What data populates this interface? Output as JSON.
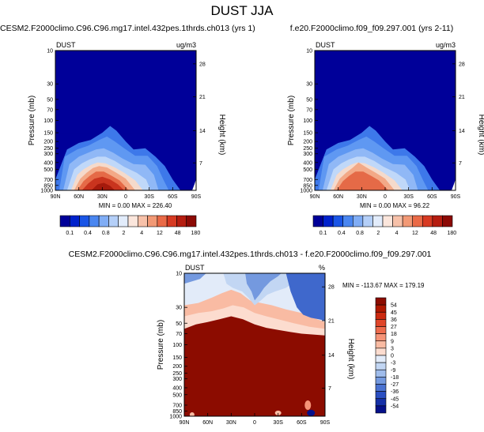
{
  "page_title": "DUST JJA",
  "chart_data": [
    {
      "type": "heatmap",
      "title": "CESM2.F2000climo.C96.C96.mg17.intel.432pes.1thrds.ch013 (yrs 1)",
      "variable": "DUST",
      "units": "ug/m3",
      "ylabel": "Pressure (mb)",
      "y2label": "Height (km)",
      "x_ticks": [
        "90N",
        "60N",
        "30N",
        "0",
        "30S",
        "60S",
        "90S"
      ],
      "y_ticks": [
        10,
        30,
        50,
        70,
        100,
        150,
        200,
        250,
        300,
        400,
        500,
        700,
        850,
        1000
      ],
      "y2_ticks": [
        28,
        21,
        14,
        7
      ],
      "ylim": [
        1000,
        10
      ],
      "scale": "log-pressure",
      "stats": {
        "min_label": "MIN =",
        "min": "0.00",
        "max_label": "MAX =",
        "max": "226.40"
      },
      "colorbar_levels": [
        "0.1",
        "0.4",
        "0.8",
        "2",
        "4",
        "12",
        "48",
        "180"
      ],
      "colorbar_colors": [
        "#000099",
        "#0022cc",
        "#1a55e6",
        "#4a86f0",
        "#80adf5",
        "#b4cff8",
        "#e2ecfb",
        "#fbe6dc",
        "#f7c1a9",
        "#f29975",
        "#ea6a47",
        "#d73a22",
        "#b51d10",
        "#8c0a05"
      ],
      "peak": "30N near surface"
    },
    {
      "type": "heatmap",
      "title": "f.e20.F2000climo.f09_f09.297.001 (yrs 2-11)",
      "variable": "DUST",
      "units": "ug/m3",
      "ylabel": "Pressure (mb)",
      "y2label": "Height (km)",
      "x_ticks": [
        "90N",
        "60N",
        "30N",
        "0",
        "30S",
        "60S",
        "90S"
      ],
      "y_ticks": [
        10,
        30,
        50,
        70,
        100,
        150,
        200,
        250,
        300,
        400,
        500,
        700,
        850,
        1000
      ],
      "y2_ticks": [
        28,
        21,
        14,
        7
      ],
      "ylim": [
        1000,
        10
      ],
      "scale": "log-pressure",
      "stats": {
        "min_label": "MIN =",
        "min": "0.00",
        "max_label": "MAX =",
        "max": "96.22"
      },
      "colorbar_levels": [
        "0.1",
        "0.4",
        "0.8",
        "2",
        "4",
        "12",
        "48",
        "180"
      ],
      "colorbar_colors": [
        "#000099",
        "#0022cc",
        "#1a55e6",
        "#4a86f0",
        "#80adf5",
        "#b4cff8",
        "#e2ecfb",
        "#fbe6dc",
        "#f7c1a9",
        "#f29975",
        "#ea6a47",
        "#d73a22",
        "#b51d10",
        "#8c0a05"
      ],
      "peak": "30N near surface"
    },
    {
      "type": "heatmap",
      "title": "CESM2.F2000climo.C96.C96.mg17.intel.432pes.1thrds.ch013 - f.e20.F2000climo.f09_f09.297.001",
      "variable": "DUST",
      "units": "%",
      "ylabel": "Pressure (mb)",
      "y2label": "Height (km)",
      "x_ticks": [
        "90N",
        "60N",
        "30N",
        "0",
        "30S",
        "60S",
        "90S"
      ],
      "y_ticks": [
        10,
        30,
        50,
        70,
        100,
        150,
        200,
        250,
        300,
        400,
        500,
        700,
        850,
        1000
      ],
      "y2_ticks": [
        28,
        21,
        14,
        7
      ],
      "ylim": [
        1000,
        10
      ],
      "scale": "log-pressure",
      "stats": {
        "min_label": "MIN =",
        "min": "-113.67",
        "max_label": "MAX =",
        "max": "179.19"
      },
      "colorbar_levels": [
        "54",
        "45",
        "36",
        "27",
        "18",
        "9",
        "3",
        "0",
        "-3",
        "-9",
        "-18",
        "-27",
        "-36",
        "-45",
        "-54"
      ],
      "colorbar_colors": [
        "#8c0c00",
        "#b01800",
        "#cc2a10",
        "#e0462a",
        "#ee6b4d",
        "#f59377",
        "#f9bba3",
        "#fcdccf",
        "#e2ebf9",
        "#c2d6f3",
        "#9fbceb",
        "#7499df",
        "#4a72d1",
        "#2a4fc2",
        "#1530a8",
        "#05108a"
      ]
    }
  ]
}
